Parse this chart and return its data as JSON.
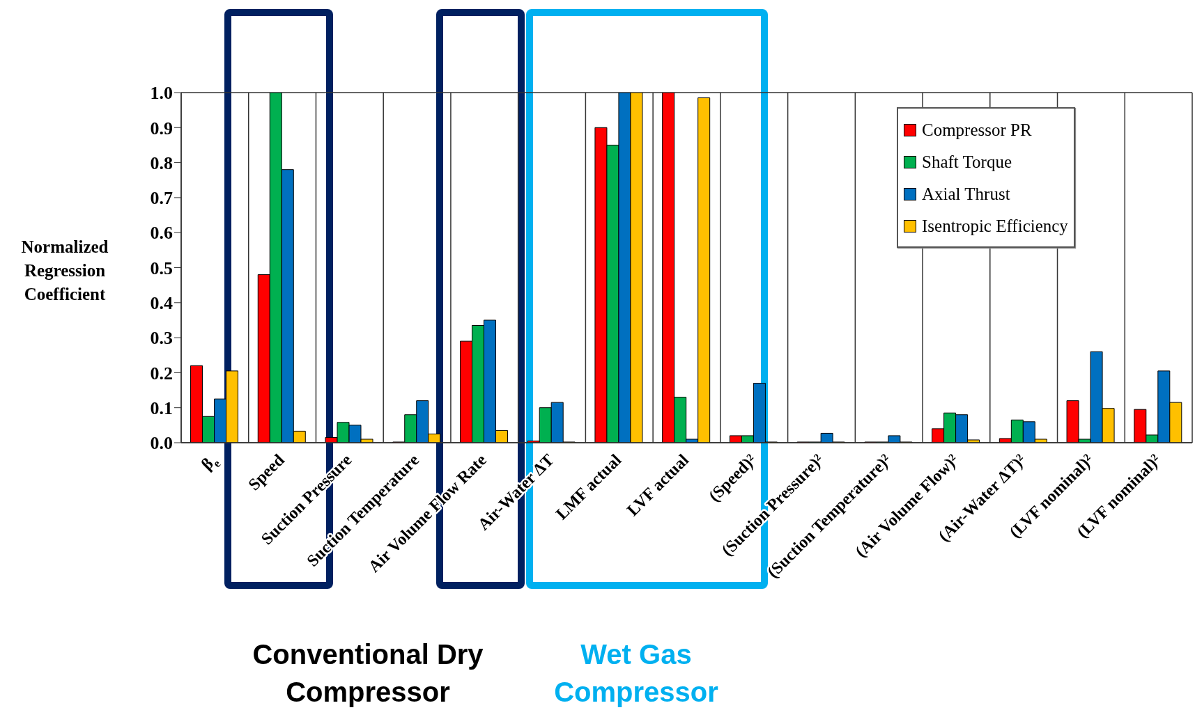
{
  "chart_data": {
    "type": "bar",
    "ylabel": "Normalized Regression Coefficient",
    "categories": [
      "β$_{e}$",
      "Speed",
      "Suction Pressure",
      "Suction Temperature",
      "Air Volume Flow Rate",
      "Air-Water ΔT",
      "LMF actual",
      "LVF actual",
      "(Speed)²",
      "(Suction Pressure)²",
      "(Suction Temperature)²",
      "(Air Volume Flow)²",
      "(Air-Water ΔT)²",
      "(LVF nominal)²",
      "(LVF nominal)²"
    ],
    "series": [
      {
        "name": "Compressor PR",
        "color": "#ff0000",
        "values": [
          0.22,
          0.48,
          0.015,
          0.002,
          0.29,
          0.005,
          0.9,
          1.0,
          0.02,
          0.002,
          0.002,
          0.04,
          0.012,
          0.12,
          0.095
        ]
      },
      {
        "name": "Shaft Torque",
        "color": "#00b050",
        "values": [
          0.075,
          1.0,
          0.058,
          0.08,
          0.335,
          0.1,
          0.85,
          0.13,
          0.02,
          0.002,
          0.002,
          0.085,
          0.065,
          0.01,
          0.022
        ]
      },
      {
        "name": "Axial Thrust",
        "color": "#0070c0",
        "values": [
          0.125,
          0.78,
          0.05,
          0.12,
          0.35,
          0.115,
          1.0,
          0.01,
          0.17,
          0.027,
          0.02,
          0.08,
          0.06,
          0.26,
          0.205
        ]
      },
      {
        "name": "Isentropic Efficiency",
        "color": "#ffc000",
        "values": [
          0.205,
          0.033,
          0.01,
          0.025,
          0.035,
          0.002,
          1.0,
          0.985,
          0.002,
          0.002,
          0.002,
          0.008,
          0.01,
          0.098,
          0.115
        ]
      }
    ],
    "ylim": [
      0,
      1.0
    ],
    "yticks": [
      {
        "value": 0,
        "label": "0.0"
      },
      {
        "value": 0.1,
        "label": "0.1"
      },
      {
        "value": 0.2,
        "label": "0.2"
      },
      {
        "value": 0.3,
        "label": "0.3"
      },
      {
        "value": 0.4,
        "label": "0.4"
      },
      {
        "value": 0.5,
        "label": "0.5"
      },
      {
        "value": 0.6,
        "label": "0.6"
      },
      {
        "value": 0.7,
        "label": "0.7"
      },
      {
        "value": 0.8,
        "label": "0.8"
      },
      {
        "value": 0.9,
        "label": "0.9"
      },
      {
        "value": 1.0,
        "label": "1.0"
      }
    ],
    "grid": true,
    "legend": "top right",
    "annotations": [
      "Conventional Dry Compressor",
      "Wet Gas Compressor"
    ]
  }
}
